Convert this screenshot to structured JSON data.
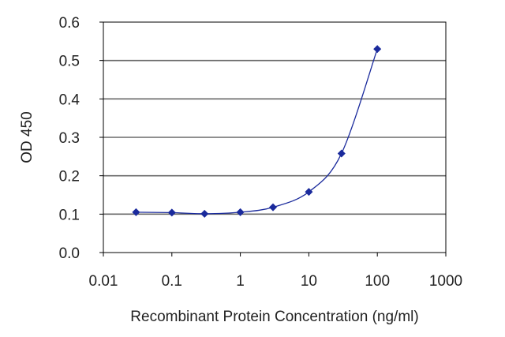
{
  "chart_data": {
    "type": "line",
    "xlabel": "Recombinant Protein Concentration (ng/ml)",
    "ylabel": "OD 450",
    "x_scale": "log",
    "xlim": [
      0.01,
      1000
    ],
    "ylim": [
      0.0,
      0.6
    ],
    "x_ticks": [
      "0.01",
      "0.1",
      "1",
      "10",
      "100",
      "1000"
    ],
    "y_ticks": [
      "0.0",
      "0.1",
      "0.2",
      "0.3",
      "0.4",
      "0.5",
      "0.6"
    ],
    "grid": "horizontal",
    "series": [
      {
        "color": "#1a2a9c",
        "marker": "diamond",
        "x": [
          0.03,
          0.1,
          0.3,
          1,
          3,
          10,
          30,
          100
        ],
        "y": [
          0.105,
          0.104,
          0.101,
          0.105,
          0.118,
          0.158,
          0.258,
          0.53
        ]
      }
    ]
  }
}
